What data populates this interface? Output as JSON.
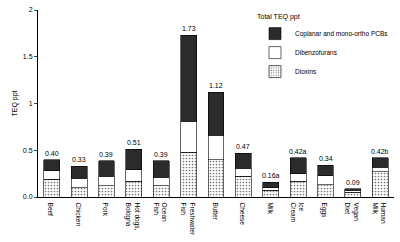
{
  "chart_data": {
    "type": "bar",
    "stacked": true,
    "legend_title": "Total TEQ ppt",
    "y_label": "TEQ ppt",
    "categories": [
      "Beef",
      "Chicken",
      "Pork",
      "Hot dogs, Bologna",
      "Ocean Fish",
      "Freshwater Fish",
      "Butter",
      "Cheese",
      "Milk",
      "Ice Cream",
      "Eggs",
      "Vegan Diet",
      "Human Milk"
    ],
    "series": [
      {
        "name": "Dioxins",
        "color": "#c8c8c8",
        "values": [
          0.19,
          0.1,
          0.12,
          0.17,
          0.12,
          0.48,
          0.4,
          0.22,
          0.07,
          0.17,
          0.13,
          0.05,
          0.27
        ]
      },
      {
        "name": "Dibenzofurans",
        "color": "#ffffff",
        "values": [
          0.09,
          0.1,
          0.1,
          0.12,
          0.09,
          0.33,
          0.26,
          0.09,
          0.03,
          0.08,
          0.1,
          0.02,
          0.05
        ]
      },
      {
        "name": "Coplanar and mono-ortho PCBs",
        "color": "#2b2b2b",
        "values": [
          0.12,
          0.13,
          0.17,
          0.22,
          0.18,
          0.92,
          0.46,
          0.16,
          0.06,
          0.17,
          0.11,
          0.02,
          0.1
        ]
      }
    ],
    "totals": [
      0.4,
      0.33,
      0.39,
      0.51,
      0.39,
      1.73,
      1.12,
      0.47,
      0.16,
      0.42,
      0.34,
      0.09,
      0.42
    ],
    "total_labels": [
      "0.40",
      "0.33",
      "0.39",
      "0.51",
      "0.39",
      "1.73",
      "1.12",
      "0.47",
      "0.16a",
      "0.42a",
      "0.34",
      "0.09",
      "0.42b"
    ],
    "ylim": [
      0,
      2
    ],
    "yticks": [
      {
        "value": 0,
        "label": "0.0"
      },
      0.5,
      1,
      1.5,
      2
    ],
    "legend": "top right",
    "grid": false
  }
}
